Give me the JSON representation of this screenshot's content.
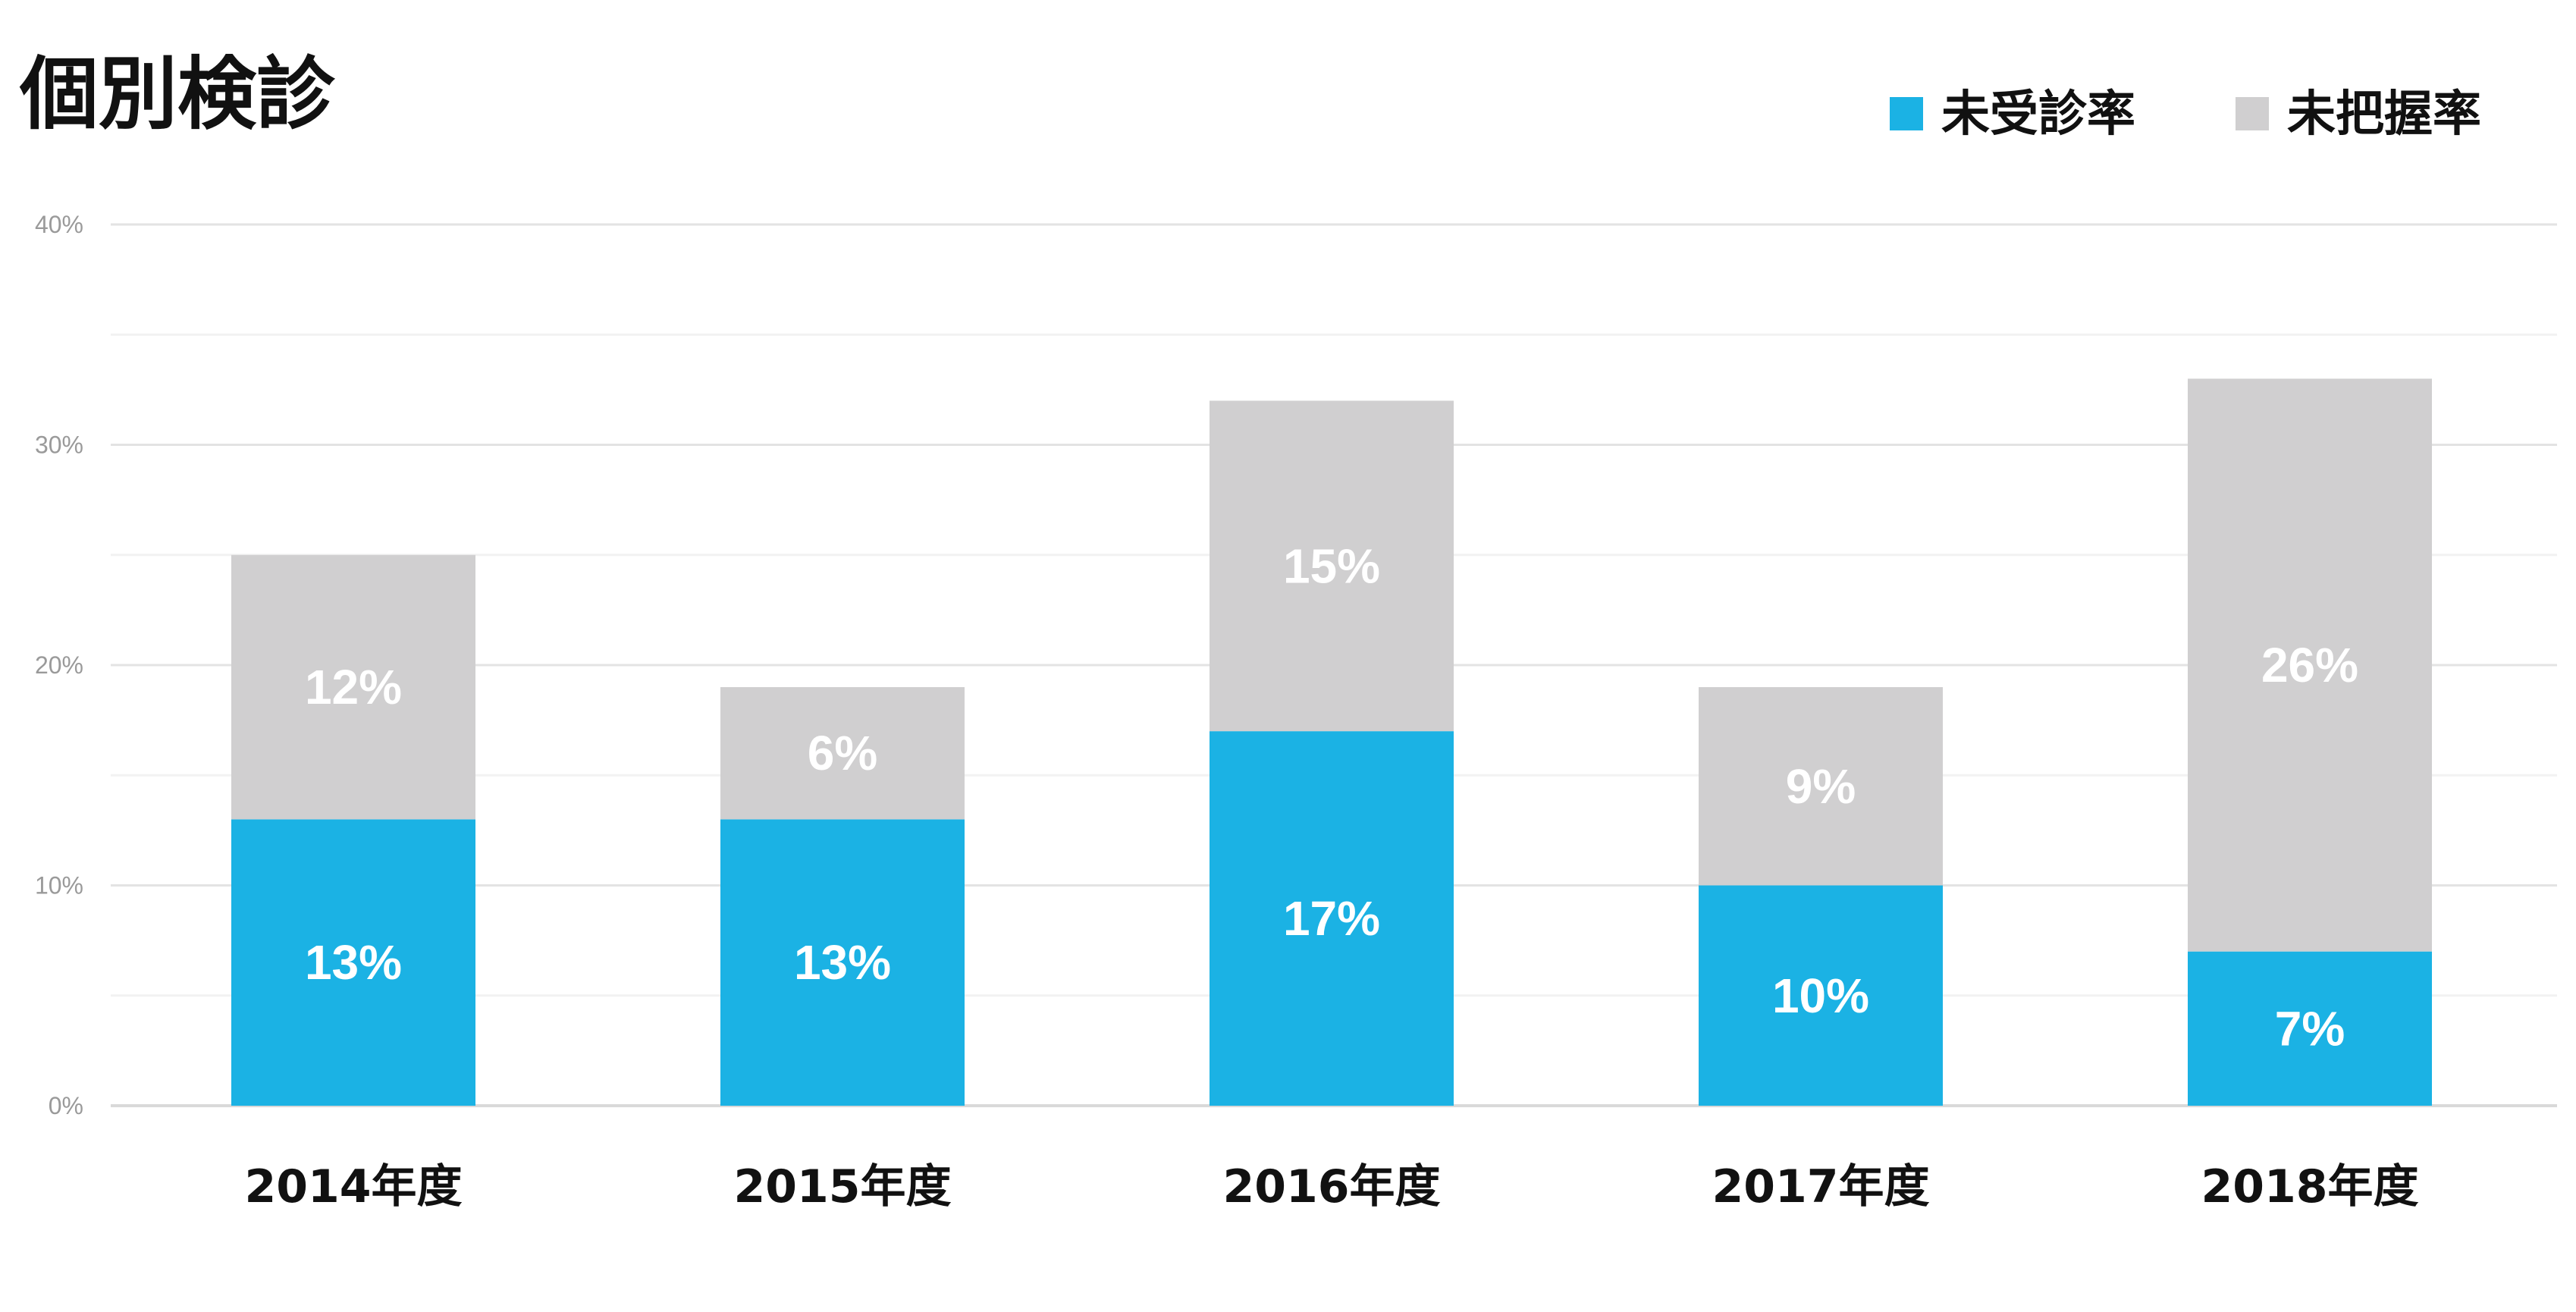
{
  "chart_data": {
    "type": "bar",
    "stacked": true,
    "title": "個別検診",
    "categories": [
      "2014年度",
      "2015年度",
      "2016年度",
      "2017年度",
      "2018年度"
    ],
    "series": [
      {
        "name": "未受診率",
        "color": "#1BB2E4",
        "values": [
          13,
          13,
          17,
          10,
          7
        ],
        "labels": [
          "13%",
          "13%",
          "17%",
          "10%",
          "7%"
        ]
      },
      {
        "name": "未把握率",
        "color": "#D0CFD0",
        "values": [
          12,
          6,
          15,
          9,
          26
        ],
        "labels": [
          "12%",
          "6%",
          "15%",
          "9%",
          "26%"
        ]
      }
    ],
    "ylim": [
      0,
      40
    ],
    "yticks": [
      0,
      10,
      20,
      30,
      40
    ],
    "ytick_labels": [
      "0%",
      "10%",
      "20%",
      "30%",
      "40%"
    ],
    "xlabel": "",
    "ylabel": "",
    "grid": true,
    "legend_position": "top-right"
  }
}
